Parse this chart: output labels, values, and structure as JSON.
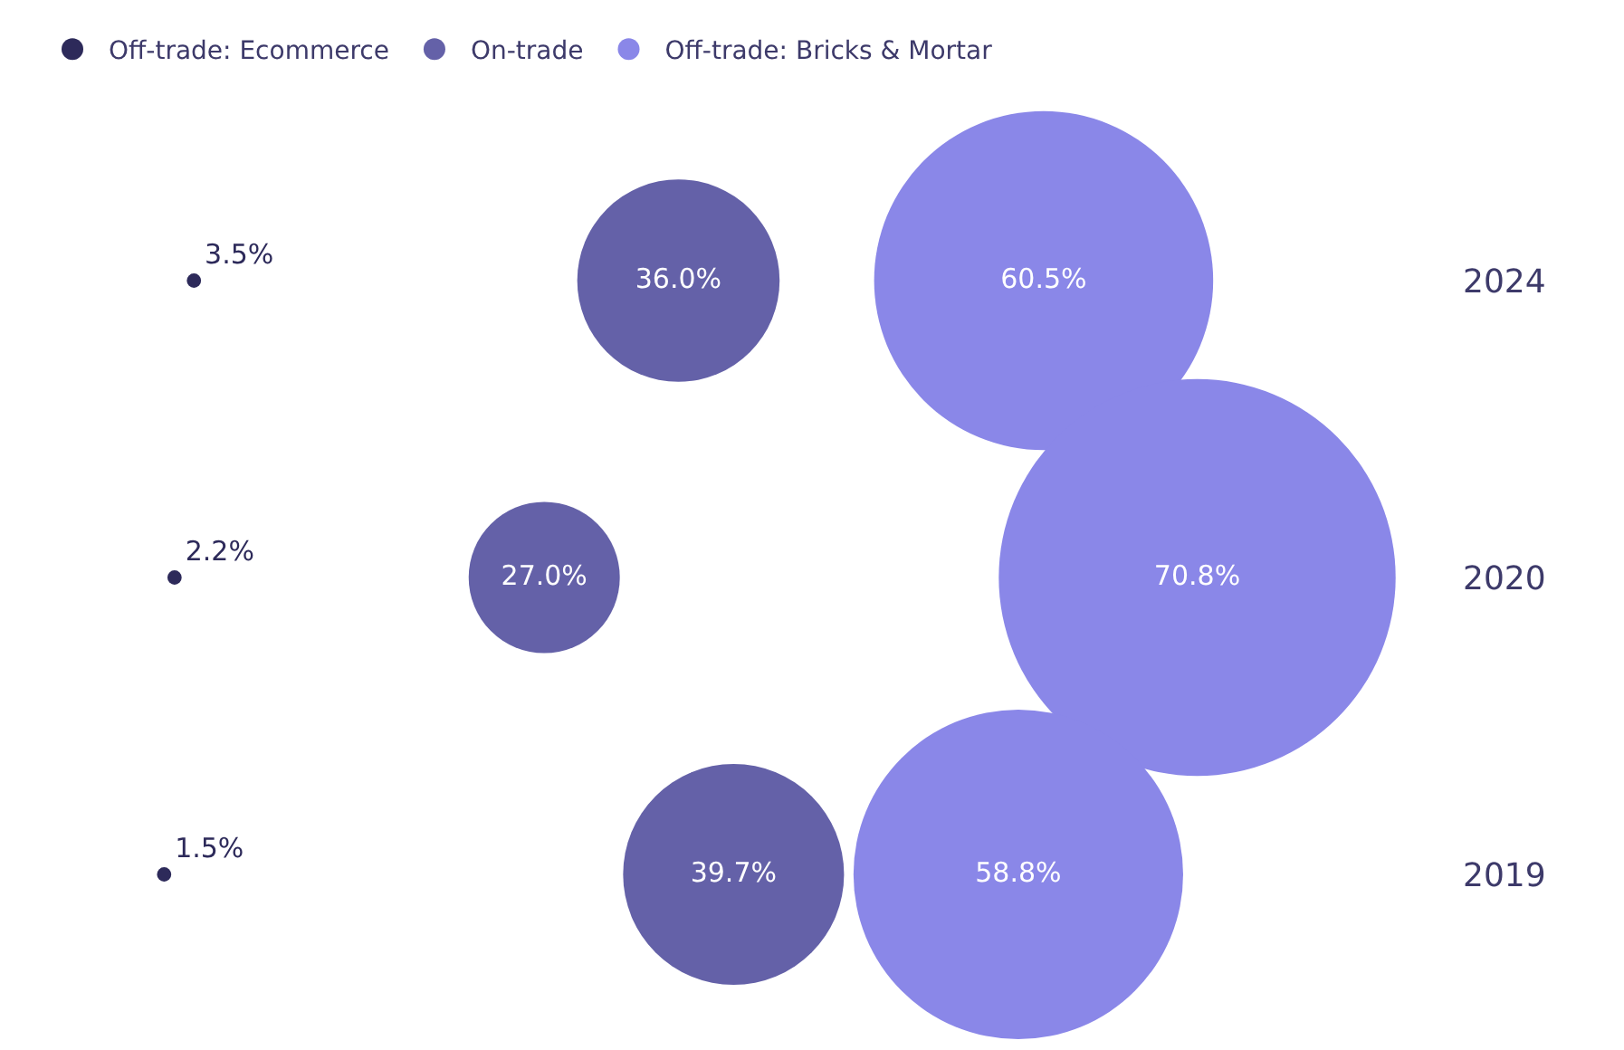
{
  "chart_data": {
    "type": "bubble",
    "orientation": "horizontal",
    "tick_labels": "y",
    "categories": [
      "2024",
      "2020",
      "2019"
    ],
    "legend": "top left",
    "series": [
      {
        "name": "Off-trade: Ecommerce",
        "color": "#2d2a5a",
        "values": [
          3.5,
          2.2,
          1.5
        ],
        "value_labels": [
          "3.5%",
          "2.2%",
          "1.5%"
        ],
        "sizes": [
          0.0013,
          0.0013,
          0.0013
        ]
      },
      {
        "name": "On-trade",
        "color": "#6461a8",
        "values": [
          36.0,
          27.0,
          39.7
        ],
        "value_labels": [
          "36.0%",
          "27.0%",
          "39.7%"
        ],
        "sizes": [
          0.26,
          0.145,
          0.31
        ]
      },
      {
        "name": "Off-trade: Bricks & Mortar",
        "color": "#8a87e8",
        "values": [
          60.5,
          70.8,
          58.8
        ],
        "value_labels": [
          "60.5%",
          "70.8%",
          "58.8%"
        ],
        "sizes": [
          0.73,
          1,
          0.69
        ]
      }
    ]
  }
}
